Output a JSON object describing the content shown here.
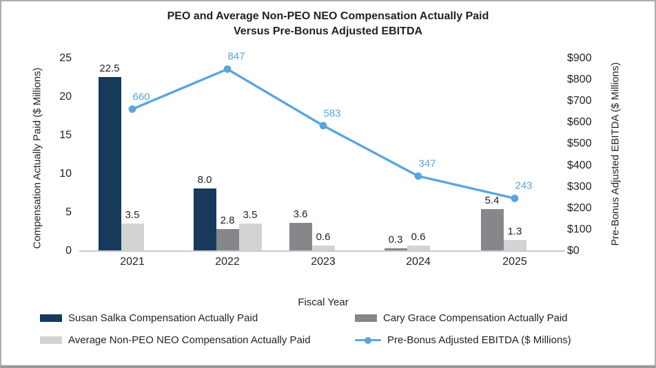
{
  "title": {
    "line1": "PEO and Average Non-PEO NEO Compensation Actually Paid",
    "line2": "Versus Pre-Bonus Adjusted EBITDA"
  },
  "chart_data": {
    "type": "combo-bar-line",
    "categories": [
      "2021",
      "2022",
      "2023",
      "2024",
      "2025"
    ],
    "xlabel": "Fiscal Year",
    "left_axis": {
      "label": "Compensation Actually Paid ($ Millions)",
      "ticks": [
        0,
        5,
        10,
        15,
        20,
        25
      ],
      "min": 0,
      "max": 25
    },
    "right_axis": {
      "label": "Pre-Bonus Adjusted EBITDA ($ Millions)",
      "ticks": [
        "$0",
        "$100",
        "$200",
        "$300",
        "$400",
        "$500",
        "$600",
        "$700",
        "$800",
        "$900"
      ],
      "min": 0,
      "max": 900
    },
    "grid": false,
    "legend_position": "bottom",
    "series": [
      {
        "id": "susan-salka",
        "name": "Susan Salka Compensation Actually Paid",
        "type": "bar",
        "axis": "left",
        "color": "#17395c",
        "values": [
          22.5,
          8.0,
          null,
          null,
          null
        ]
      },
      {
        "id": "cary-grace",
        "name": "Cary Grace Compensation Actually Paid",
        "type": "bar",
        "axis": "left",
        "color": "#85878a",
        "values": [
          null,
          2.8,
          3.6,
          0.3,
          5.4
        ]
      },
      {
        "id": "avg-non-peo-neo",
        "name": "Average Non-PEO NEO Compensation Actually Paid",
        "type": "bar",
        "axis": "left",
        "color": "#d2d3d5",
        "values": [
          3.5,
          3.5,
          0.6,
          0.6,
          1.3
        ]
      },
      {
        "id": "ebitda",
        "name": "Pre-Bonus Adjusted EBITDA ($ Millions)",
        "type": "line",
        "axis": "right",
        "color": "#57a6dd",
        "values": [
          660,
          847,
          583,
          347,
          243
        ]
      }
    ]
  },
  "colors": {
    "text": "#231f20",
    "axis_line": "#c7c8ca",
    "frame_border": "#abadb0"
  }
}
